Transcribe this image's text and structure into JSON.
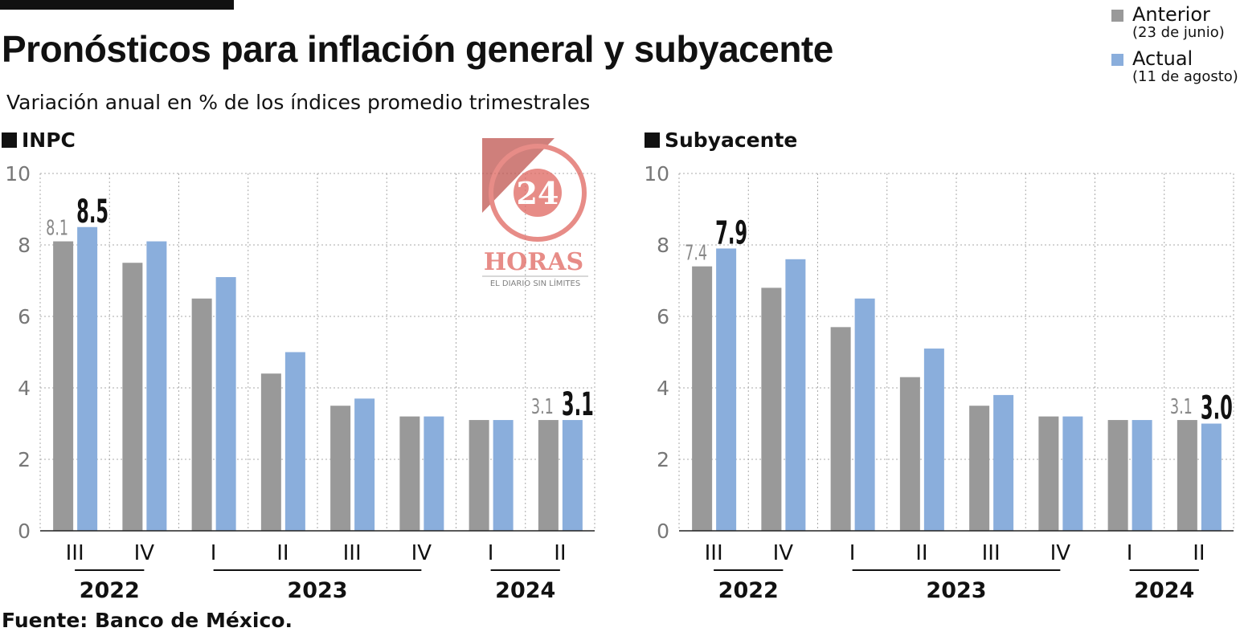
{
  "title": "Pronósticos para inflación general y subyacente",
  "subtitle": "Variación anual en % de los índices promedio trimestrales",
  "source": "Fuente: Banco de México.",
  "legend": [
    {
      "label": "Anterior",
      "sub": "(23 de junio)",
      "color": "#999999"
    },
    {
      "label": "Actual",
      "sub": "(11 de agosto)",
      "color": "#8aaedc"
    }
  ],
  "logo": {
    "text": "24 HORAS",
    "tagline": "EL DIARIO SIN LÍMITES"
  },
  "chart_data": [
    {
      "type": "bar",
      "title": "INPC",
      "categories": [
        "III",
        "IV",
        "I",
        "II",
        "III",
        "IV",
        "I",
        "II"
      ],
      "years": [
        {
          "label": "2022",
          "from": 0,
          "to": 1
        },
        {
          "label": "2023",
          "from": 2,
          "to": 5
        },
        {
          "label": "2024",
          "from": 6,
          "to": 7
        }
      ],
      "ylim": [
        0,
        10
      ],
      "yticks": [
        0,
        2,
        4,
        6,
        8,
        10
      ],
      "grid": true,
      "series": [
        {
          "name": "Anterior",
          "values": [
            8.1,
            7.5,
            6.5,
            4.4,
            3.5,
            3.2,
            3.1,
            3.1
          ]
        },
        {
          "name": "Actual",
          "values": [
            8.5,
            8.1,
            7.1,
            5.0,
            3.7,
            3.2,
            3.1,
            3.1
          ]
        }
      ],
      "labels": [
        {
          "index": 0,
          "anterior": "8.1",
          "actual": "8.5"
        },
        {
          "index": 7,
          "anterior": "3.1",
          "actual": "3.1"
        }
      ]
    },
    {
      "type": "bar",
      "title": "Subyacente",
      "categories": [
        "III",
        "IV",
        "I",
        "II",
        "III",
        "IV",
        "I",
        "II"
      ],
      "years": [
        {
          "label": "2022",
          "from": 0,
          "to": 1
        },
        {
          "label": "2023",
          "from": 2,
          "to": 5
        },
        {
          "label": "2024",
          "from": 6,
          "to": 7
        }
      ],
      "ylim": [
        0,
        10
      ],
      "yticks": [
        0,
        2,
        4,
        6,
        8,
        10
      ],
      "grid": true,
      "series": [
        {
          "name": "Anterior",
          "values": [
            7.4,
            6.8,
            5.7,
            4.3,
            3.5,
            3.2,
            3.1,
            3.1
          ]
        },
        {
          "name": "Actual",
          "values": [
            7.9,
            7.6,
            6.5,
            5.1,
            3.8,
            3.2,
            3.1,
            3.0
          ]
        }
      ],
      "labels": [
        {
          "index": 0,
          "anterior": "7.4",
          "actual": "7.9"
        },
        {
          "index": 7,
          "anterior": "3.1",
          "actual": "3.0"
        }
      ]
    }
  ]
}
